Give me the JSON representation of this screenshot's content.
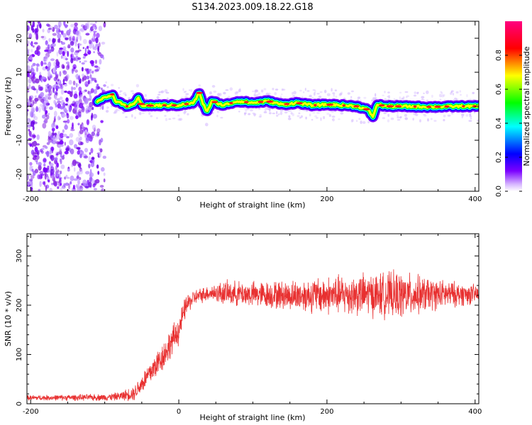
{
  "figure": {
    "title": "S134.2023.009.18.22.G18"
  },
  "chart_data": [
    {
      "type": "heatmap",
      "xlabel": "Height of straight line (km)",
      "ylabel": "Frequency (Hz)",
      "xlim": [
        -205,
        405
      ],
      "ylim": [
        -25,
        25
      ],
      "x_ticks": [
        -200,
        0,
        200,
        400
      ],
      "y_ticks": [
        -20,
        -10,
        0,
        10,
        20
      ],
      "colorbar": {
        "label": "Normalized spectral amplitude",
        "range": [
          0,
          1
        ],
        "ticks": [
          "0.0",
          "0.2",
          "0.4",
          "0.6",
          "0.8"
        ],
        "colors": [
          "#ffffff",
          "#7b00ff",
          "#0000ff",
          "#00ffff",
          "#00ff00",
          "#ffff00",
          "#ff0000",
          "#ff0080"
        ]
      },
      "ridge": {
        "x": [
          -110,
          -100,
          -90,
          -85,
          -80,
          -70,
          -60,
          -55,
          -50,
          -40,
          -20,
          0,
          20,
          28,
          32,
          38,
          45,
          60,
          80,
          100,
          120,
          140,
          160,
          180,
          200,
          220,
          240,
          255,
          262,
          268,
          280,
          300,
          340,
          380,
          405
        ],
        "freq": [
          1.5,
          2.5,
          3.5,
          1.5,
          1.0,
          0.0,
          0.5,
          2.5,
          0.3,
          0.2,
          0.3,
          0.3,
          1.0,
          4.0,
          1.0,
          -1.5,
          1.5,
          0.3,
          1.5,
          1.0,
          1.5,
          0.5,
          1.0,
          0.3,
          0.5,
          0.3,
          0.0,
          -1.0,
          -3.0,
          0.5,
          0.0,
          0.0,
          -0.2,
          0.0,
          0.0
        ]
      },
      "noise_region_x": [
        -205,
        -100
      ]
    },
    {
      "type": "line",
      "xlabel": "Height of straight line (km)",
      "ylabel": "SNR (10 * v/v)",
      "xlim": [
        -205,
        405
      ],
      "ylim": [
        0,
        345
      ],
      "x_ticks": [
        -200,
        0,
        200,
        400
      ],
      "y_ticks": [
        0,
        100,
        200,
        300
      ],
      "color": "#e83030",
      "envelope": {
        "x": [
          -205,
          -100,
          -80,
          -60,
          -40,
          -20,
          0,
          10,
          20,
          40,
          60,
          100,
          150,
          200,
          250,
          300,
          350,
          405
        ],
        "mean": [
          12,
          13,
          15,
          22,
          60,
          100,
          150,
          200,
          215,
          225,
          225,
          222,
          220,
          220,
          222,
          220,
          222,
          222
        ],
        "spread": [
          6,
          8,
          10,
          18,
          30,
          35,
          35,
          25,
          18,
          18,
          28,
          30,
          35,
          45,
          50,
          55,
          35,
          22
        ]
      }
    }
  ]
}
